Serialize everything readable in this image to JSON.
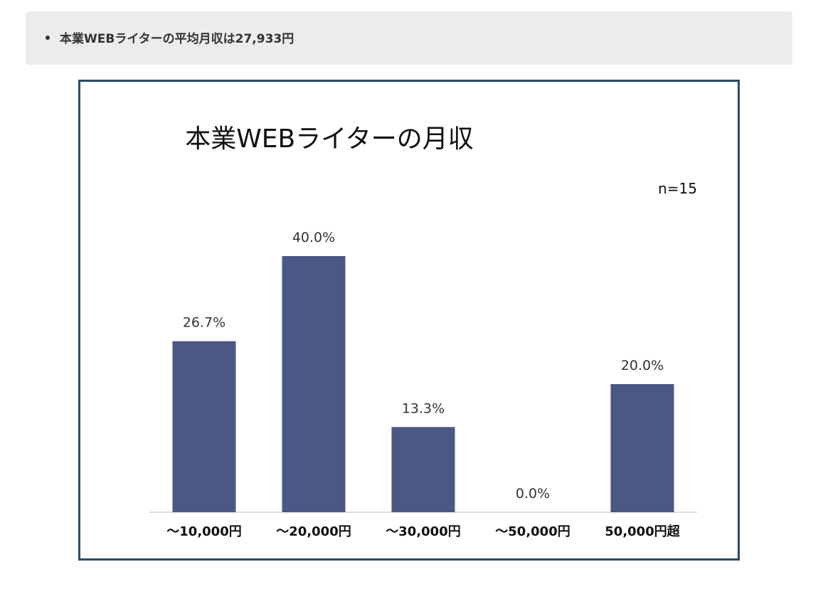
{
  "summary": {
    "text": "本業WEBライターの平均月収は27,933円"
  },
  "colors": {
    "bar": "#4b5784",
    "frame": "#2e4a63",
    "summary_bg": "#ececec"
  },
  "chart_data": {
    "type": "bar",
    "title": "本業WEBライターの月収",
    "annotation": "n=15",
    "categories": [
      "～10,000円",
      "～20,000円",
      "～30,000円",
      "～50,000円",
      "50,000円超"
    ],
    "values": [
      26.7,
      40.0,
      13.3,
      0.0,
      20.0
    ],
    "value_labels": [
      "26.7%",
      "40.0%",
      "13.3%",
      "0.0%",
      "20.0%"
    ],
    "xlabel": "",
    "ylabel": "",
    "ylim": [
      0,
      40
    ],
    "grid": false,
    "legend": "none"
  }
}
